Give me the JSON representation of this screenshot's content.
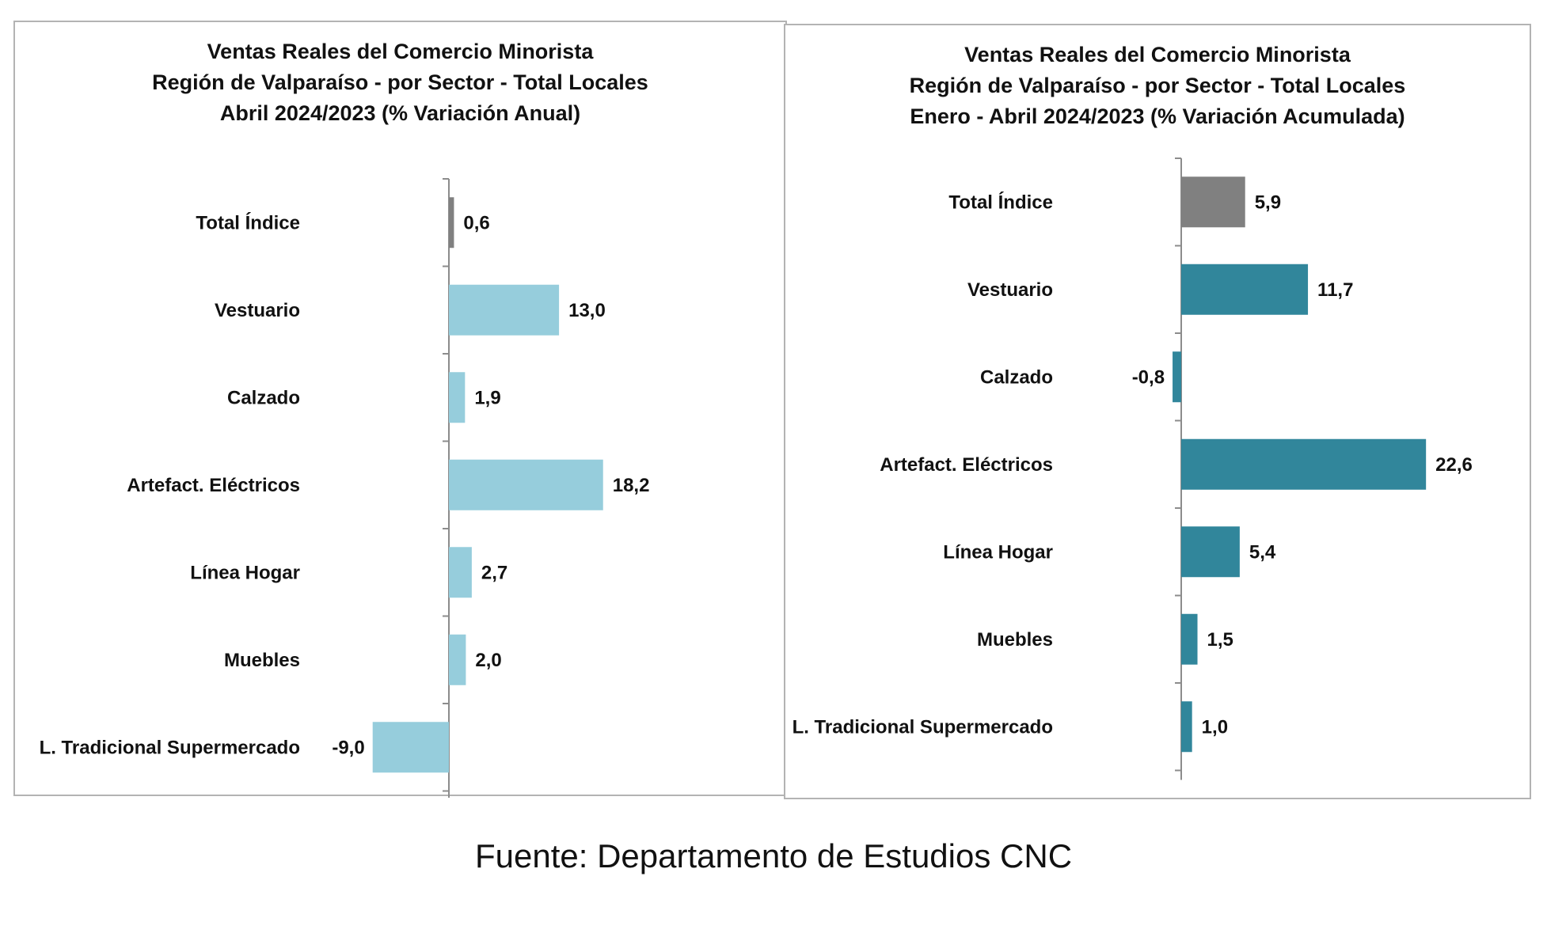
{
  "chart_data": [
    {
      "type": "bar",
      "orientation": "horizontal",
      "title": "Ventas Reales del Comercio Minorista",
      "subtitle_line1": "Región de Valparaíso - por Sector - Total Locales",
      "subtitle_line2": "Abril 2024/2023 (% Variación Anual)",
      "categories": [
        "Total Índice",
        "Vestuario",
        "Calzado",
        "Artefact. Eléctricos",
        "Línea Hogar",
        "Muebles",
        "L. Tradicional Supermercado"
      ],
      "values": [
        0.6,
        13.0,
        1.9,
        18.2,
        2.7,
        2.0,
        -9.0
      ],
      "value_labels": [
        "0,6",
        "13,0",
        "1,9",
        "18,2",
        "2,7",
        "2,0",
        "-9,0"
      ],
      "colors": [
        "#808080",
        "#96cddc",
        "#96cddc",
        "#96cddc",
        "#96cddc",
        "#96cddc",
        "#96cddc"
      ],
      "legend": "none",
      "grid": false
    },
    {
      "type": "bar",
      "orientation": "horizontal",
      "title": "Ventas Reales del Comercio Minorista",
      "subtitle_line1": "Región de Valparaíso - por Sector  - Total Locales",
      "subtitle_line2": "Enero - Abril 2024/2023 (% Variación Acumulada)",
      "categories": [
        "Total Índice",
        "Vestuario",
        "Calzado",
        "Artefact. Eléctricos",
        "Línea Hogar",
        "Muebles",
        "L. Tradicional Supermercado"
      ],
      "values": [
        5.9,
        11.7,
        -0.8,
        22.6,
        5.4,
        1.5,
        1.0
      ],
      "value_labels": [
        "5,9",
        "11,7",
        "-0,8",
        "22,6",
        "5,4",
        "1,5",
        "1,0"
      ],
      "colors": [
        "#808080",
        "#31869b",
        "#31869b",
        "#31869b",
        "#31869b",
        "#31869b",
        "#31869b"
      ],
      "legend": "none",
      "grid": false
    }
  ],
  "footer": {
    "source": "Fuente: Departamento de Estudios CNC"
  }
}
